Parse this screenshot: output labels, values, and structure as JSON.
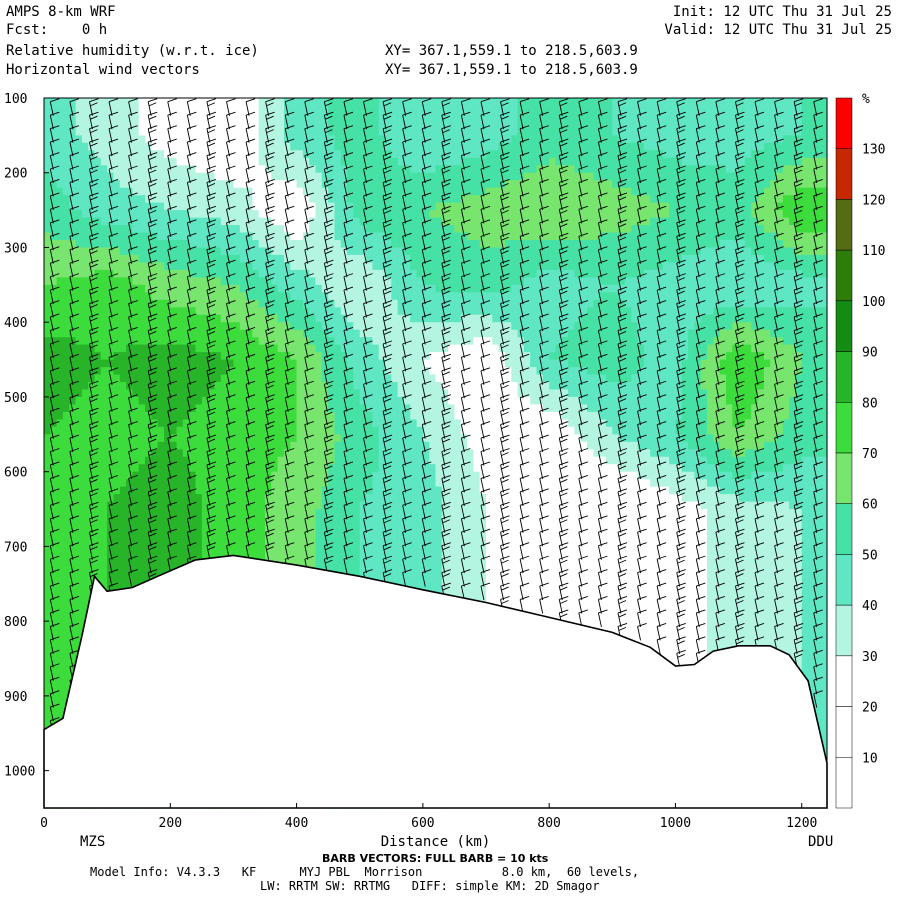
{
  "header": {
    "model": "AMPS 8-km WRF",
    "forecast": "Fcst:    0 h",
    "field1": "Relative humidity (w.r.t. ice)",
    "field2": "Horizontal wind vectors",
    "xy1": "XY= 367.1,559.1 to 218.5,603.9",
    "xy2": "XY= 367.1,559.1 to 218.5,603.9",
    "init": "Init: 12 UTC Thu 31 Jul 25",
    "valid": "Valid: 12 UTC Thu 31 Jul 25"
  },
  "footer": {
    "barb_note": "BARB VECTORS: FULL BARB = 10 kts",
    "model_info": "Model Info: V4.3.3   KF      MYJ PBL  Morrison           8.0 km,  60 levels,",
    "physics": "LW: RRTM SW: RRTMG   DIFF: simple KM: 2D Smagor"
  },
  "colors": {
    "background": "#ffffff",
    "terrain_line": "#000000"
  },
  "chart_data": {
    "type": "heatmap",
    "title": "Relative humidity (w.r.t. ice)",
    "xlabel": "Distance (km)",
    "ylabel": "",
    "xlim": [
      0,
      1240
    ],
    "ylim": [
      1050,
      100
    ],
    "y_scale": "linear pressure, inverted (hPa)",
    "x_ticks": [
      0,
      200,
      400,
      600,
      800,
      1000,
      1200
    ],
    "y_ticks": [
      100,
      200,
      300,
      400,
      500,
      600,
      700,
      800,
      900,
      1000
    ],
    "endpoints": {
      "left": "MZS",
      "right": "DDU"
    },
    "colorbar": {
      "unit": "%",
      "labels": [
        10,
        20,
        30,
        40,
        50,
        60,
        70,
        80,
        90,
        100,
        110,
        120,
        130
      ],
      "bins": [
        {
          "range": [
            0,
            10
          ],
          "color": "#ffffff"
        },
        {
          "range": [
            10,
            20
          ],
          "color": "#ffffff"
        },
        {
          "range": [
            20,
            30
          ],
          "color": "#ffffff"
        },
        {
          "range": [
            30,
            40
          ],
          "color": "#b4f5e1"
        },
        {
          "range": [
            40,
            50
          ],
          "color": "#5fe6c3"
        },
        {
          "range": [
            50,
            60
          ],
          "color": "#46e1a5"
        },
        {
          "range": [
            60,
            70
          ],
          "color": "#78e66e"
        },
        {
          "range": [
            70,
            80
          ],
          "color": "#3cdc3c"
        },
        {
          "range": [
            80,
            90
          ],
          "color": "#28b428"
        },
        {
          "range": [
            90,
            100
          ],
          "color": "#148c14"
        },
        {
          "range": [
            100,
            110
          ],
          "color": "#2d7d0a"
        },
        {
          "range": [
            110,
            120
          ],
          "color": "#556b14"
        },
        {
          "range": [
            120,
            130
          ],
          "color": "#c82800"
        },
        {
          "range": [
            130,
            140
          ],
          "color": "#ff0000"
        }
      ]
    },
    "terrain_surface_hpa": {
      "x": [
        0,
        30,
        60,
        80,
        100,
        140,
        180,
        240,
        300,
        400,
        500,
        600,
        700,
        800,
        900,
        960,
        1000,
        1030,
        1060,
        1100,
        1150,
        1180,
        1210,
        1240
      ],
      "y": [
        945,
        930,
        820,
        740,
        760,
        755,
        740,
        718,
        712,
        725,
        740,
        758,
        775,
        795,
        815,
        835,
        860,
        858,
        840,
        833,
        833,
        845,
        880,
        990
      ]
    },
    "rh_approx": {
      "x_km": [
        0,
        100,
        200,
        300,
        400,
        500,
        600,
        700,
        800,
        900,
        1000,
        1100,
        1200
      ],
      "p_hpa": [
        150,
        250,
        350,
        450,
        550,
        650
      ],
      "rh_pct": [
        [
          45,
          35,
          25,
          20,
          45,
          55,
          40,
          45,
          55,
          50,
          45,
          45,
          50
        ],
        [
          55,
          45,
          40,
          35,
          20,
          55,
          60,
          65,
          70,
          65,
          60,
          55,
          80
        ],
        [
          70,
          75,
          65,
          60,
          45,
          30,
          50,
          55,
          45,
          50,
          45,
          40,
          45
        ],
        [
          85,
          80,
          85,
          80,
          70,
          45,
          30,
          20,
          50,
          55,
          45,
          80,
          60
        ],
        [
          80,
          75,
          80,
          75,
          70,
          55,
          40,
          25,
          20,
          40,
          50,
          70,
          55
        ],
        [
          75,
          80,
          85,
          75,
          65,
          50,
          45,
          30,
          20,
          15,
          25,
          35,
          40
        ]
      ]
    },
    "wind_barbs": "columns of barbs every ~30 km; winds mostly from the west, 10-30 kts"
  }
}
